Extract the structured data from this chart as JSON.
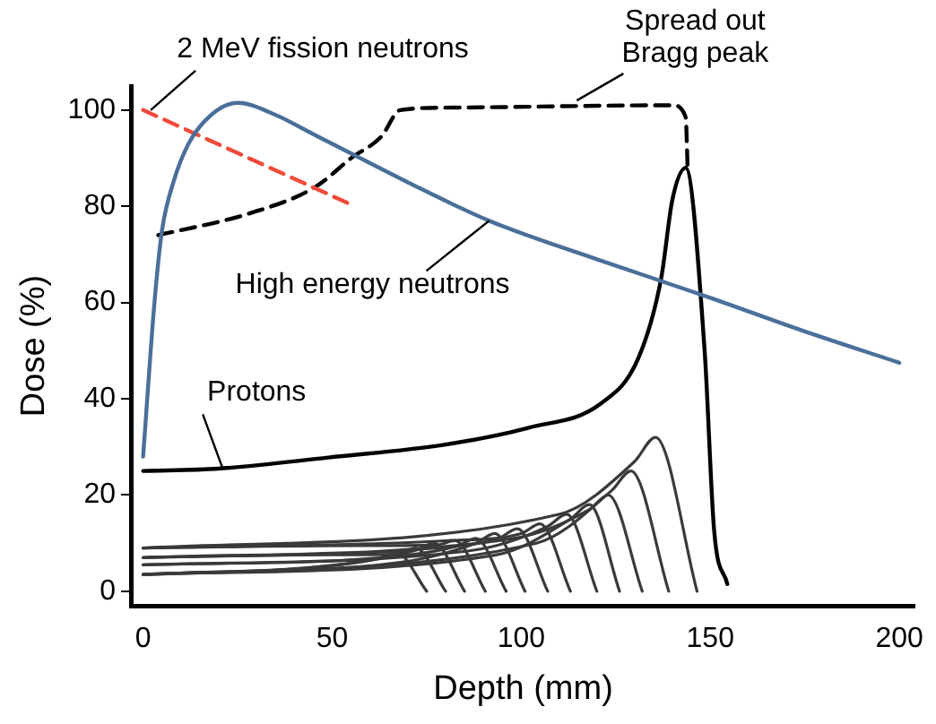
{
  "chart_data": {
    "type": "line",
    "xlabel": "Depth (mm)",
    "ylabel": "Dose (%)",
    "xlim": [
      -3,
      204
    ],
    "ylim": [
      -3,
      105
    ],
    "xticks": [
      0,
      50,
      100,
      150,
      200
    ],
    "yticks": [
      0,
      20,
      40,
      60,
      80,
      100
    ],
    "grid": false,
    "legend": false,
    "marker": "none",
    "series": [
      {
        "color": "#4a6f9a",
        "line_style": "solid",
        "x": [
          0,
          3,
          5,
          8,
          12,
          18,
          25,
          35,
          45,
          55,
          70,
          91.5,
          120,
          150,
          175,
          200
        ],
        "values": [
          28,
          60,
          75,
          85,
          93,
          99,
          101.5,
          99,
          95,
          91,
          85,
          77,
          69,
          61,
          54,
          47.5
        ]
      },
      {
        "color": "#f04a3a",
        "line_style": "dashed",
        "x": [
          0,
          56
        ],
        "values": [
          100,
          80
        ]
      },
      {
        "color": "#000000",
        "line_style": "dashed",
        "x": [
          4,
          28,
          45.5,
          55,
          63,
          68,
          80,
          140,
          143.5,
          144
        ],
        "values": [
          74,
          78.5,
          84,
          90,
          94.5,
          100,
          100.5,
          101,
          98.5,
          88
        ]
      },
      {
        "color": "#000000",
        "line_style": "solid",
        "x": [
          0,
          20,
          49,
          80,
          102,
          121,
          131,
          137,
          140,
          143.5,
          148.5,
          151,
          154.5
        ],
        "values": [
          25,
          25.5,
          27.8,
          30.5,
          34,
          39,
          48.5,
          65,
          81.5,
          88,
          50,
          12.8,
          1.5
        ]
      },
      {
        "color": "#3a3a3a",
        "line_style": "solid",
        "x": [
          0,
          42,
          62,
          67,
          75
        ],
        "values": [
          3.5,
          4.8,
          6.8,
          8,
          0
        ]
      },
      {
        "color": "#3a3a3a",
        "line_style": "solid",
        "x": [
          0,
          47,
          67,
          72,
          80
        ],
        "values": [
          7,
          7.6,
          7.7,
          9,
          0
        ]
      },
      {
        "color": "#3a3a3a",
        "line_style": "solid",
        "x": [
          0,
          52,
          72,
          77,
          85
        ],
        "values": [
          3.5,
          5.5,
          8.5,
          10,
          0
        ]
      },
      {
        "color": "#3a3a3a",
        "line_style": "solid",
        "x": [
          0,
          57.5,
          77.5,
          82.5,
          90.5
        ],
        "values": [
          9,
          9.5,
          9.6,
          10.5,
          0
        ]
      },
      {
        "color": "#3a3a3a",
        "line_style": "solid",
        "x": [
          0,
          63,
          83,
          88,
          96
        ],
        "values": [
          5.5,
          7,
          9.4,
          11,
          0
        ]
      },
      {
        "color": "#3a3a3a",
        "line_style": "solid",
        "x": [
          0,
          68,
          88,
          93,
          101
        ],
        "values": [
          3.5,
          6,
          10,
          12,
          0
        ]
      },
      {
        "color": "#3a3a3a",
        "line_style": "solid",
        "x": [
          0,
          74,
          94,
          99,
          107
        ],
        "values": [
          7,
          8.8,
          11,
          13,
          0
        ]
      },
      {
        "color": "#3a3a3a",
        "line_style": "solid",
        "x": [
          0,
          80,
          100,
          105,
          113
        ],
        "values": [
          9,
          10.5,
          12,
          14,
          0
        ]
      },
      {
        "color": "#3a3a3a",
        "line_style": "solid",
        "x": [
          0,
          87,
          107,
          112,
          120
        ],
        "values": [
          5.5,
          8.5,
          13.5,
          16,
          0
        ]
      },
      {
        "color": "#3a3a3a",
        "line_style": "solid",
        "x": [
          0,
          93,
          113,
          118,
          126
        ],
        "values": [
          3.5,
          7.5,
          15,
          18,
          0
        ]
      },
      {
        "color": "#3a3a3a",
        "line_style": "solid",
        "x": [
          0,
          98,
          118,
          123,
          132
        ],
        "values": [
          7,
          11,
          17,
          20,
          0
        ]
      },
      {
        "color": "#3a3a3a",
        "line_style": "solid",
        "x": [
          0,
          104,
          124,
          129,
          139
        ],
        "values": [
          3.5,
          10,
          21,
          25,
          0
        ]
      },
      {
        "color": "#3a3a3a",
        "line_style": "solid",
        "x": [
          0,
          110,
          130,
          135.5,
          146.5
        ],
        "values": [
          9,
          16,
          27,
          32,
          0
        ]
      }
    ],
    "annotations": [
      {
        "text": "2 MeV fission neutrons",
        "x": 2,
        "y": 100
      },
      {
        "text": "Spread out\nBragg peak",
        "x": 114.7,
        "y": 102
      },
      {
        "text": "High energy neutrons",
        "x": 91.5,
        "y": 77
      },
      {
        "text": "Protons",
        "x": 21,
        "y": 25.6
      }
    ]
  }
}
